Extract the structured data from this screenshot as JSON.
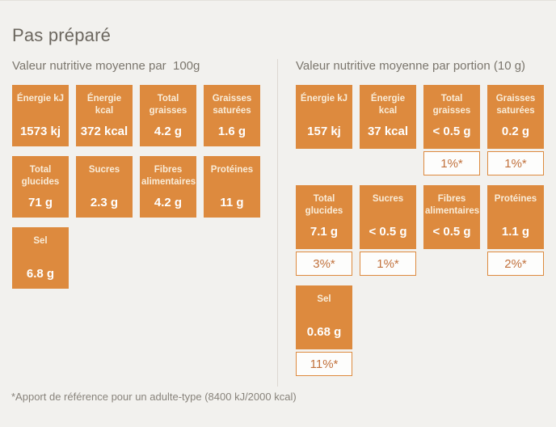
{
  "page": {
    "title": "Pas préparé",
    "footnote": "*Apport de référence pour un adulte-type (8400 kJ/2000 kcal)"
  },
  "colors": {
    "tile_orange": "#dd8a3e",
    "background": "#f2f1ee",
    "percent_text": "#c1713c",
    "title_text": "#6c675f"
  },
  "left": {
    "subtitle": "Valeur nutritive moyenne par  100g",
    "rows": [
      {
        "tiles": [
          {
            "label": "Énergie kJ",
            "value": "1573 kj"
          },
          {
            "label": "Énergie kcal",
            "value": "372 kcal"
          },
          {
            "label": "Total graisses",
            "value": "4.2 g"
          },
          {
            "label": "Graisses saturées",
            "value": "1.6 g"
          }
        ]
      },
      {
        "tiles": [
          {
            "label": "Total glucides",
            "value": "71 g"
          },
          {
            "label": "Sucres",
            "value": "2.3 g"
          },
          {
            "label": "Fibres alimentaires",
            "value": "4.2 g"
          },
          {
            "label": "Protéines",
            "value": "11 g"
          }
        ]
      },
      {
        "tiles": [
          {
            "label": "Sel",
            "value": "6.8 g"
          }
        ]
      }
    ]
  },
  "right": {
    "subtitle": "Valeur nutritive moyenne par portion (10 g)",
    "rows": [
      {
        "tiles": [
          {
            "label": "Énergie kJ",
            "value": "157 kj"
          },
          {
            "label": "Énergie kcal",
            "value": "37 kcal"
          },
          {
            "label": "Total graisses",
            "value": "< 0.5 g",
            "percent": "1%*"
          },
          {
            "label": "Graisses saturées",
            "value": "0.2 g",
            "percent": "1%*"
          }
        ]
      },
      {
        "tiles": [
          {
            "label": "Total glucides",
            "value": "7.1 g",
            "percent": "3%*"
          },
          {
            "label": "Sucres",
            "value": "< 0.5 g",
            "percent": "1%*"
          },
          {
            "label": "Fibres alimentaires",
            "value": "< 0.5 g"
          },
          {
            "label": "Protéines",
            "value": "1.1 g",
            "percent": "2%*"
          }
        ]
      },
      {
        "tiles": [
          {
            "label": "Sel",
            "value": "0.68 g",
            "percent": "11%*"
          }
        ]
      }
    ]
  }
}
